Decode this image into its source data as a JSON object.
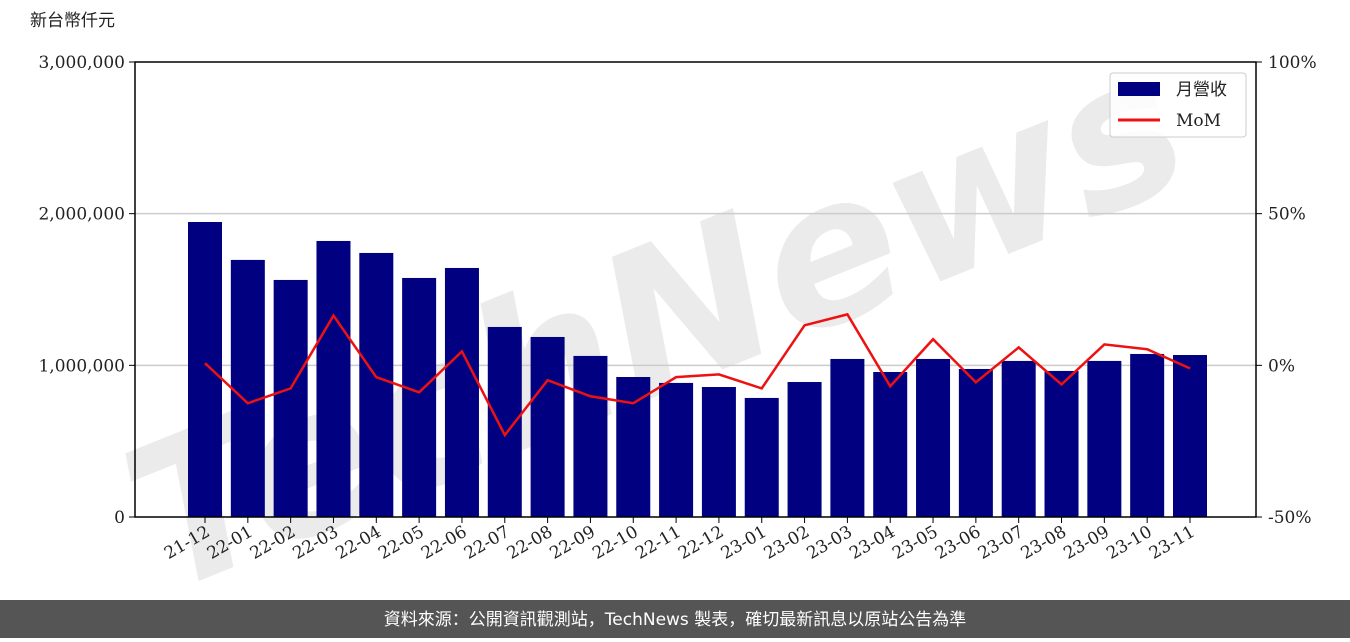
{
  "chart_data": {
    "type": "bar",
    "y_label": "新台幣仟元",
    "watermark": "TechNews",
    "source": "資料來源：公開資訊觀測站，TechNews 製表，確切最新訊息以原站公告為準",
    "categories": [
      "21-12",
      "22-01",
      "22-02",
      "22-03",
      "22-04",
      "22-05",
      "22-06",
      "22-07",
      "22-08",
      "22-09",
      "22-10",
      "22-11",
      "22-12",
      "23-01",
      "23-02",
      "23-03",
      "23-04",
      "23-05",
      "23-06",
      "23-07",
      "23-08",
      "23-09",
      "23-10",
      "23-11"
    ],
    "series": [
      {
        "name": "月營收",
        "type": "bar",
        "color": "#000080",
        "values": [
          1945000,
          1695000,
          1563000,
          1820000,
          1741000,
          1576000,
          1642000,
          1253000,
          1187000,
          1062000,
          923000,
          884000,
          857000,
          785000,
          890000,
          1042000,
          956000,
          1042000,
          976000,
          1029000,
          963000,
          1029000,
          1075000,
          1068000
        ]
      },
      {
        "name": "MoM",
        "type": "line",
        "axis": "y2",
        "color": "#ee1111",
        "values": [
          0.7,
          -12.5,
          -7.6,
          16.4,
          -3.9,
          -8.9,
          4.6,
          -23,
          -4.9,
          -10.2,
          -12.5,
          -3.9,
          -3,
          -7.6,
          13.2,
          16.8,
          -6.9,
          8.6,
          -5.6,
          5.9,
          -6.3,
          6.9,
          5.3,
          -1
        ]
      }
    ],
    "ylim": [
      0,
      3000000
    ],
    "yticks": [
      0,
      {
        "value": 1000000,
        "label": "1,000,000"
      },
      {
        "value": 2000000,
        "label": "2,000,000"
      },
      {
        "value": 3000000,
        "label": "3,000,000"
      }
    ],
    "y2lim": [
      -50,
      100
    ],
    "y2ticks": [
      {
        "value": -50,
        "label": "-50%"
      },
      {
        "value": 0,
        "label": "0%"
      },
      {
        "value": 50,
        "label": "50%"
      },
      {
        "value": 100,
        "label": "100%"
      }
    ],
    "grid": true,
    "legend": "upper right"
  }
}
